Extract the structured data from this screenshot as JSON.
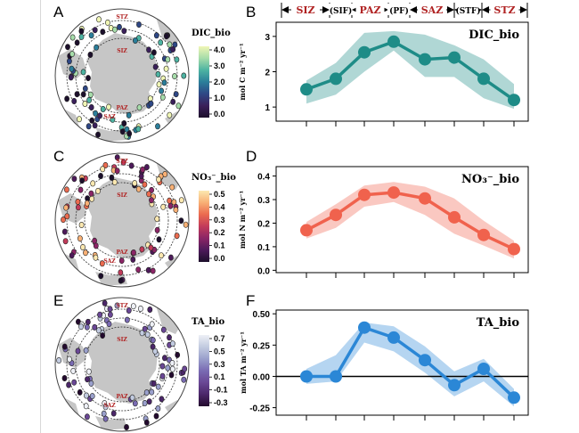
{
  "panel_letters": [
    "A",
    "B",
    "C",
    "D",
    "E",
    "F"
  ],
  "zones": [
    {
      "label": "SIZ",
      "type": "zone"
    },
    {
      "label": "(SIF)",
      "type": "front"
    },
    {
      "label": "PAZ",
      "type": "zone"
    },
    {
      "label": "(PF)",
      "type": "front"
    },
    {
      "label": "SAZ",
      "type": "zone"
    },
    {
      "label": "(STF)",
      "type": "front"
    },
    {
      "label": "STZ",
      "type": "zone"
    }
  ],
  "map_labels": {
    "stz": "STZ",
    "siz": "SIZ",
    "paz": "PAZ",
    "saz": "SAZ"
  },
  "colors": {
    "zone_label": "#b02222",
    "dic": "#1e8c87",
    "no3": "#f0624d",
    "ta": "#2b87d6"
  },
  "maps": [
    {
      "legend_title": "DIC_bio",
      "ticks": [
        "4.0",
        "3.0",
        "2.0",
        "1.0",
        "0.0"
      ],
      "colorscale": [
        "#f0f6b5",
        "#a6dcaa",
        "#4db3a2",
        "#2b7e9a",
        "#2e4785",
        "#3a1f5a",
        "#1c0f2b"
      ]
    },
    {
      "legend_title": "NO₃⁻_bio",
      "ticks": [
        "0.5",
        "0.4",
        "0.3",
        "0.2",
        "0.1",
        "0.0"
      ],
      "colorscale": [
        "#fce8b0",
        "#f8b075",
        "#eb6b4f",
        "#c23b5a",
        "#8b2566",
        "#4d1a5a",
        "#1c0f2b"
      ]
    },
    {
      "legend_title": "TA_bio",
      "ticks": [
        "0.7",
        "0.5",
        "0.3",
        "0.1",
        "-0.1",
        "-0.3"
      ],
      "colorscale": [
        "#eef0f6",
        "#c2cbe0",
        "#9aa0cc",
        "#7a6bb3",
        "#6a4795",
        "#4b2669",
        "#230a2e"
      ]
    }
  ],
  "chart_data": [
    {
      "type": "line",
      "title": "DIC_bio",
      "ylabel": "mol C m⁻² yr⁻¹",
      "x": [
        1,
        2,
        3,
        4,
        5,
        6,
        7,
        8
      ],
      "series": [
        {
          "values": [
            1.5,
            1.8,
            2.55,
            2.85,
            2.35,
            2.4,
            1.8,
            1.2
          ],
          "lower": [
            1.1,
            1.35,
            2.0,
            2.6,
            1.85,
            1.85,
            1.25,
            0.95
          ],
          "upper": [
            1.75,
            2.25,
            3.1,
            3.15,
            3.05,
            2.75,
            2.35,
            1.65
          ]
        }
      ],
      "yticks": [
        1,
        2,
        3
      ],
      "ytick_labels": [
        "1",
        "2",
        "3"
      ],
      "ylim": [
        0.6,
        3.4
      ]
    },
    {
      "type": "line",
      "title": "NO₃⁻_bio",
      "ylabel": "mol N m⁻² yr⁻¹",
      "x": [
        1,
        2,
        3,
        4,
        5,
        6,
        7,
        8
      ],
      "series": [
        {
          "values": [
            0.17,
            0.235,
            0.32,
            0.33,
            0.305,
            0.225,
            0.15,
            0.09
          ],
          "lower": [
            0.135,
            0.18,
            0.27,
            0.29,
            0.235,
            0.155,
            0.105,
            0.05
          ],
          "upper": [
            0.205,
            0.28,
            0.36,
            0.375,
            0.355,
            0.305,
            0.21,
            0.125
          ]
        }
      ],
      "yticks": [
        0.0,
        0.1,
        0.2,
        0.3,
        0.4
      ],
      "ytick_labels": [
        "0.0",
        "0.1",
        "0.2",
        "0.3",
        "0.4"
      ],
      "ylim": [
        -0.01,
        0.44
      ]
    },
    {
      "type": "line",
      "title": "TA_bio",
      "ylabel": "mol TA m⁻² yr⁻¹",
      "x": [
        1,
        2,
        3,
        4,
        5,
        6,
        7,
        8
      ],
      "series": [
        {
          "values": [
            0.0,
            0.0,
            0.39,
            0.31,
            0.13,
            -0.07,
            0.06,
            -0.17
          ],
          "lower": [
            -0.06,
            -0.04,
            0.27,
            0.2,
            0.03,
            -0.16,
            -0.04,
            -0.24
          ],
          "upper": [
            0.06,
            0.17,
            0.43,
            0.4,
            0.24,
            0.04,
            0.14,
            -0.1
          ]
        }
      ],
      "yticks": [
        -0.25,
        0.0,
        0.25,
        0.5
      ],
      "ytick_labels": [
        "-0.25",
        "0.00",
        "0.25",
        "0.50"
      ],
      "ylim": [
        -0.31,
        0.53
      ],
      "zero_line": true
    }
  ]
}
